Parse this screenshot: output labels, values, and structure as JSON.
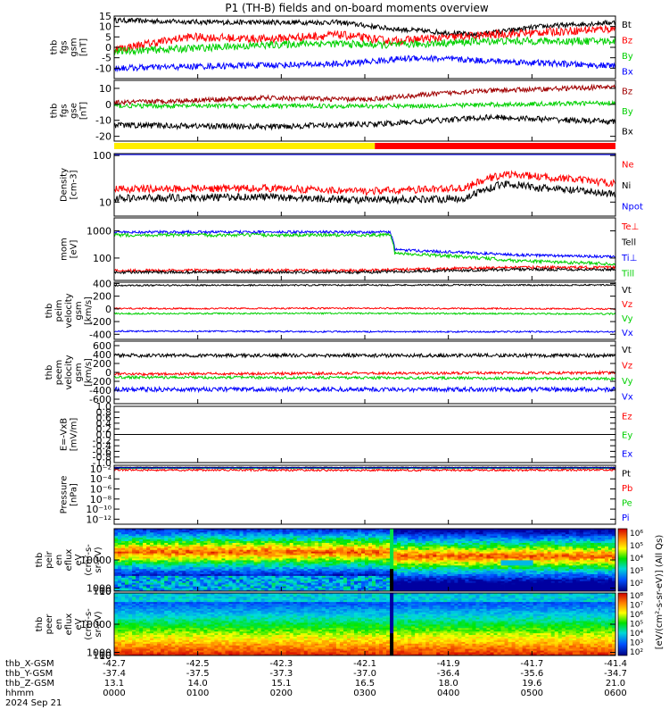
{
  "title": "P1 (TH-B) fields and on-board moments overview",
  "colors": {
    "black": "#000000",
    "red": "#ff0000",
    "green": "#00e000",
    "blue": "#0000ff",
    "darkred": "#a00000",
    "yellow": "#ffee00"
  },
  "chart_data": [
    {
      "type": "line",
      "ylabel": [
        "thb",
        "fgs",
        "gsm",
        "[nT]"
      ],
      "ylim": [
        -15,
        15
      ],
      "yticks": [
        "15",
        "10",
        "5",
        "0",
        "-5",
        "-10"
      ],
      "yticks_v": [
        15,
        10,
        5,
        0,
        -5,
        -10
      ],
      "series": [
        {
          "name": "Bt",
          "color": "#000000",
          "kf": [
            [
              0,
              13
            ],
            [
              0.2,
              12
            ],
            [
              0.45,
              12
            ],
            [
              0.55,
              9
            ],
            [
              0.72,
              6
            ],
            [
              0.85,
              10
            ],
            [
              1,
              12
            ]
          ],
          "noise": 1.2
        },
        {
          "name": "Bz",
          "color": "#ff0000",
          "kf": [
            [
              0,
              -1
            ],
            [
              0.15,
              5
            ],
            [
              0.3,
              4
            ],
            [
              0.45,
              6
            ],
            [
              0.55,
              3
            ],
            [
              0.75,
              6
            ],
            [
              1,
              9
            ]
          ],
          "noise": 2.0
        },
        {
          "name": "By",
          "color": "#00d000",
          "kf": [
            [
              0,
              -2
            ],
            [
              0.2,
              0
            ],
            [
              0.4,
              2
            ],
            [
              0.55,
              1
            ],
            [
              0.75,
              3
            ],
            [
              1,
              3
            ]
          ],
          "noise": 1.8
        },
        {
          "name": "Bx",
          "color": "#0000ff",
          "kf": [
            [
              0,
              -10
            ],
            [
              0.2,
              -9
            ],
            [
              0.45,
              -8
            ],
            [
              0.6,
              -5
            ],
            [
              0.8,
              -7
            ],
            [
              1,
              -9
            ]
          ],
          "noise": 1.5
        }
      ]
    },
    {
      "type": "line",
      "ylabel": [
        "thb",
        "fgs",
        "gse",
        "[nT]"
      ],
      "ylim": [
        -23,
        15
      ],
      "yticks": [
        "10",
        "0",
        "-10",
        "-20"
      ],
      "yticks_v": [
        10,
        0,
        -10,
        -20
      ],
      "series": [
        {
          "name": "Bz",
          "color": "#a00000",
          "kf": [
            [
              0,
              1
            ],
            [
              0.3,
              4
            ],
            [
              0.5,
              3
            ],
            [
              0.7,
              8
            ],
            [
              1,
              11
            ]
          ],
          "noise": 1.5
        },
        {
          "name": "By",
          "color": "#00d000",
          "kf": [
            [
              0,
              -1
            ],
            [
              0.3,
              -1
            ],
            [
              0.6,
              -1
            ],
            [
              0.8,
              0
            ],
            [
              1,
              1
            ]
          ],
          "noise": 1.4
        },
        {
          "name": "Bx",
          "color": "#000000",
          "kf": [
            [
              0,
              -13
            ],
            [
              0.3,
              -14
            ],
            [
              0.55,
              -12
            ],
            [
              0.75,
              -8
            ],
            [
              1,
              -11
            ]
          ],
          "noise": 1.8
        }
      ]
    },
    {
      "type": "line",
      "log": true,
      "ylabel": [
        "Density",
        "[cm-3]"
      ],
      "ylim": [
        5,
        110
      ],
      "yticks": [
        "100",
        "10"
      ],
      "yticks_v": [
        100,
        10
      ],
      "series": [
        {
          "name": "Ne",
          "color": "#ff0000",
          "kf": [
            [
              0,
              19
            ],
            [
              0.3,
              20
            ],
            [
              0.5,
              17
            ],
            [
              0.7,
              20
            ],
            [
              0.78,
              40
            ],
            [
              0.85,
              35
            ],
            [
              1,
              25
            ]
          ],
          "noise": 0.08
        },
        {
          "name": "Ni",
          "color": "#000000",
          "kf": [
            [
              0,
              12
            ],
            [
              0.3,
              13
            ],
            [
              0.5,
              11
            ],
            [
              0.7,
              12
            ],
            [
              0.78,
              25
            ],
            [
              0.85,
              20
            ],
            [
              1,
              15
            ]
          ],
          "noise": 0.08
        },
        {
          "name": "Npot",
          "color": "#0000ff",
          "kf": [
            [
              0,
              105
            ],
            [
              1,
              105
            ]
          ],
          "noise": 0.0
        }
      ]
    },
    {
      "type": "line",
      "log": true,
      "ylabel": [
        "mom",
        "[eV]"
      ],
      "ylim": [
        15,
        3000
      ],
      "yticks": [
        "1000",
        "100"
      ],
      "yticks_v": [
        1000,
        100
      ],
      "series": [
        {
          "name": "Ne",
          "label": "Te⊥",
          "color": "#ff0000",
          "kf": [
            [
              0,
              35
            ],
            [
              0.5,
              35
            ],
            [
              0.8,
              45
            ],
            [
              1,
              45
            ]
          ],
          "noise": 0.05
        },
        {
          "name": "Tell",
          "color": "#000000",
          "kf": [
            [
              0,
              30
            ],
            [
              0.5,
              30
            ],
            [
              0.8,
              38
            ],
            [
              1,
              38
            ]
          ],
          "noise": 0.05
        },
        {
          "name": "Ti⊥",
          "color": "#0000ff",
          "kf": [
            [
              0,
              900
            ],
            [
              0.55,
              900
            ],
            [
              0.56,
              200
            ],
            [
              0.8,
              130
            ],
            [
              1,
              110
            ]
          ],
          "noise": 0.05
        },
        {
          "name": "Till",
          "color": "#00d000",
          "kf": [
            [
              0,
              700
            ],
            [
              0.55,
              700
            ],
            [
              0.56,
              150
            ],
            [
              0.8,
              80
            ],
            [
              1,
              60
            ]
          ],
          "noise": 0.06
        }
      ]
    },
    {
      "type": "line",
      "ylabel": [
        "thb",
        "peim",
        "velocity",
        "gsm",
        "[km/s]"
      ],
      "ylim": [
        -480,
        420
      ],
      "yticks": [
        "400",
        "200",
        "0",
        "-200",
        "-400"
      ],
      "yticks_v": [
        400,
        200,
        0,
        -200,
        -400
      ],
      "series": [
        {
          "name": "Vt",
          "color": "#000000",
          "kf": [
            [
              0,
              370
            ],
            [
              0.5,
              375
            ],
            [
              1,
              375
            ]
          ],
          "noise": 12
        },
        {
          "name": "Vz",
          "color": "#ff0000",
          "kf": [
            [
              0,
              5
            ],
            [
              0.5,
              10
            ],
            [
              1,
              0
            ]
          ],
          "noise": 12
        },
        {
          "name": "Vy",
          "color": "#00d000",
          "kf": [
            [
              0,
              -75
            ],
            [
              0.5,
              -70
            ],
            [
              1,
              -80
            ]
          ],
          "noise": 12
        },
        {
          "name": "Vx",
          "color": "#0000ff",
          "kf": [
            [
              0,
              -350
            ],
            [
              0.5,
              -360
            ],
            [
              1,
              -360
            ]
          ],
          "noise": 12
        }
      ]
    },
    {
      "type": "line",
      "ylabel": [
        "thb",
        "peem",
        "velocity",
        "gsm",
        "[km/s]"
      ],
      "ylim": [
        -700,
        700
      ],
      "yticks": [
        "600",
        "400",
        "200",
        "0",
        "-200",
        "-400",
        "-600"
      ],
      "yticks_v": [
        600,
        400,
        200,
        0,
        -200,
        -400,
        -600
      ],
      "series": [
        {
          "name": "Vt",
          "color": "#000000",
          "kf": [
            [
              0,
              380
            ],
            [
              0.5,
              380
            ],
            [
              1,
              380
            ]
          ],
          "noise": 40
        },
        {
          "name": "Vz",
          "color": "#ff0000",
          "kf": [
            [
              0,
              -40
            ],
            [
              0.5,
              -20
            ],
            [
              1,
              -10
            ]
          ],
          "noise": 30
        },
        {
          "name": "Vy",
          "color": "#00d000",
          "kf": [
            [
              0,
              -110
            ],
            [
              0.5,
              -120
            ],
            [
              1,
              -140
            ]
          ],
          "noise": 30
        },
        {
          "name": "Vx",
          "color": "#0000ff",
          "kf": [
            [
              0,
              -380
            ],
            [
              0.5,
              -380
            ],
            [
              1,
              -380
            ]
          ],
          "noise": 50
        }
      ]
    },
    {
      "type": "line",
      "ylabel": [
        "E=-VxB",
        "[mV/m]"
      ],
      "ylim": [
        -1,
        1
      ],
      "yticks": [
        "1.0",
        "0.8",
        "0.6",
        "0.4",
        "0.2",
        "0.0",
        "-0.2",
        "-0.4",
        "-0.6",
        "-0.8",
        "-1.0"
      ],
      "yticks_v": [
        1,
        0.8,
        0.6,
        0.4,
        0.2,
        0,
        -0.2,
        -0.4,
        -0.6,
        -0.8,
        -1
      ],
      "series": [
        {
          "name": "Ez",
          "color": "#ff0000",
          "kf": [],
          "noise": 0
        },
        {
          "name": "Ey",
          "color": "#00d000",
          "kf": [],
          "noise": 0
        },
        {
          "name": "Ex",
          "color": "#0000ff",
          "kf": [],
          "noise": 0
        }
      ]
    },
    {
      "type": "line",
      "log": true,
      "ylabel": [
        "Pressure",
        "[nPa]"
      ],
      "ylim": [
        1e-13,
        0.05
      ],
      "yticks": [
        "10⁻²",
        "10⁻⁴",
        "10⁻⁶",
        "10⁻⁸",
        "10⁻¹⁰",
        "10⁻¹²"
      ],
      "yticks_v": [
        0.01,
        0.0001,
        1e-06,
        1e-08,
        1e-10,
        1e-12
      ],
      "series": [
        {
          "name": "Pt",
          "color": "#000000",
          "kf": [
            [
              0,
              0.02
            ],
            [
              1,
              0.02
            ]
          ],
          "noise": 0.05
        },
        {
          "name": "Pb",
          "color": "#ff0000",
          "kf": [
            [
              0,
              0.006
            ],
            [
              0.5,
              0.005
            ],
            [
              1,
              0.006
            ]
          ],
          "noise": 0.2
        },
        {
          "name": "Pe",
          "color": "#00d000",
          "kf": [
            [
              0,
              0.012
            ],
            [
              1,
              0.012
            ]
          ],
          "noise": 0.05
        },
        {
          "name": "Pi",
          "color": "#0000ff",
          "kf": [
            [
              0,
              0.015
            ],
            [
              1,
              0.015
            ]
          ],
          "noise": 0.05
        }
      ]
    },
    {
      "type": "heatmap",
      "ylabel": [
        "thb",
        "peir",
        "en",
        "eflux",
        "eV",
        "(cm²-s-",
        "sr-eV)"
      ],
      "ylim": [
        5,
        20000
      ],
      "yticks": [
        "10000",
        "1000",
        "100",
        "10"
      ],
      "yticks_v": [
        10000,
        1000,
        100,
        10
      ]
    },
    {
      "type": "heatmap",
      "ylabel": [
        "thb",
        "peer",
        "en",
        "eflux",
        "eV",
        "(cm²-s-",
        "sr-eV)"
      ],
      "ylim": [
        5,
        20000
      ],
      "yticks": [
        "10000",
        "1000",
        "100",
        "10"
      ],
      "yticks_v": [
        10000,
        1000,
        100,
        10
      ]
    }
  ],
  "colorbar": {
    "ticks": [
      "10⁶",
      "10⁵",
      "10⁴",
      "10³",
      "10²"
    ],
    "ticks2": [
      "10⁸",
      "10⁷",
      "10⁶",
      "10⁵",
      "10⁴",
      "10³",
      "10²"
    ],
    "label": "[eV/(cm²-s-sr-eV)] (All Qs)"
  },
  "xaxis": {
    "rows": [
      {
        "label": "thb_X-GSM",
        "values": [
          "-42.7",
          "-42.5",
          "-42.3",
          "-42.1",
          "-41.9",
          "-41.7",
          "-41.4"
        ]
      },
      {
        "label": "thb_Y-GSM",
        "values": [
          "-37.4",
          "-37.5",
          "-37.3",
          "-37.0",
          "-36.4",
          "-35.6",
          "-34.7"
        ]
      },
      {
        "label": "thb_Z-GSM",
        "values": [
          "13.1",
          "14.0",
          "15.1",
          "16.5",
          "18.0",
          "19.6",
          "21.0"
        ]
      },
      {
        "label": "hhmm",
        "values": [
          "0000",
          "0100",
          "0200",
          "0300",
          "0400",
          "0500",
          "0600"
        ]
      }
    ],
    "date": "2024 Sep 21"
  }
}
